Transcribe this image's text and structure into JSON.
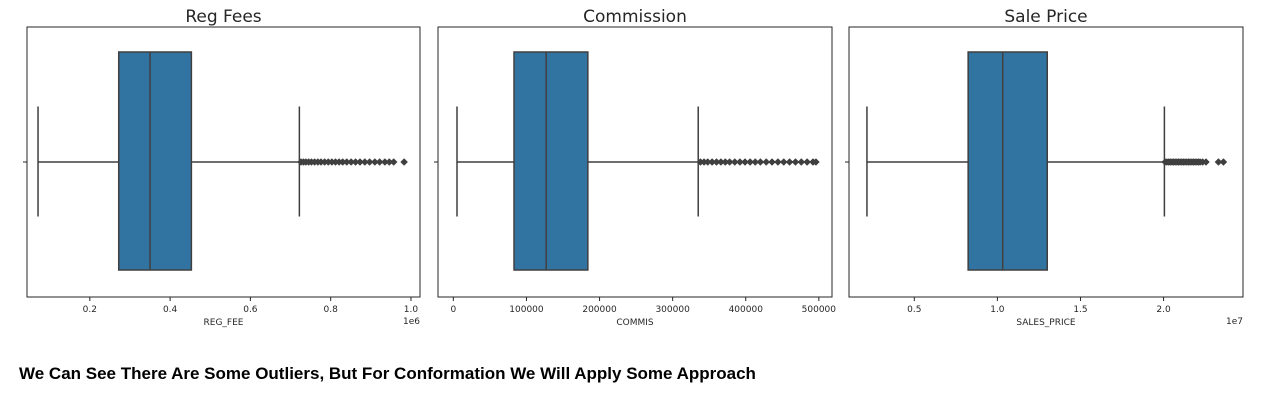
{
  "caption": "We Can See There Are Some Outliers, But For Conformation We Will Apply Some Approach",
  "colors": {
    "box_fill": "#3274a1",
    "line": "#3f3f3f",
    "frame": "#262626"
  },
  "chart_data": [
    {
      "type": "box",
      "title": "Reg Fees",
      "xlabel": "REG_FEE",
      "offset_text": "1e6",
      "xlim": [
        0.0435,
        1.0225
      ],
      "ticks": [
        0.2,
        0.4,
        0.6,
        0.8,
        1.0
      ],
      "tick_labels": [
        "0.2",
        "0.4",
        "0.6",
        "0.8",
        "1.0"
      ],
      "scale": 1000000,
      "stats": {
        "whisker_low": 0.071,
        "q1": 0.272,
        "median": 0.35,
        "q3": 0.453,
        "whisker_high": 0.722
      },
      "outliers": [
        0.726,
        0.732,
        0.738,
        0.745,
        0.752,
        0.76,
        0.768,
        0.776,
        0.785,
        0.794,
        0.803,
        0.812,
        0.821,
        0.83,
        0.84,
        0.851,
        0.862,
        0.873,
        0.885,
        0.897,
        0.91,
        0.922,
        0.935,
        0.946,
        0.957,
        0.983
      ]
    },
    {
      "type": "box",
      "title": "Commission",
      "xlabel": "COMMIS",
      "offset_text": "",
      "xlim": [
        -21000,
        518000
      ],
      "ticks": [
        0,
        100000,
        200000,
        300000,
        400000,
        500000
      ],
      "tick_labels": [
        "0",
        "100000",
        "200000",
        "300000",
        "400000",
        "500000"
      ],
      "scale": 1,
      "stats": {
        "whisker_low": 5000,
        "q1": 83000,
        "median": 127000,
        "q3": 184000,
        "whisker_high": 335000
      },
      "outliers": [
        338000,
        343000,
        348000,
        354000,
        360000,
        366000,
        372000,
        378000,
        385000,
        392000,
        399000,
        406000,
        413000,
        420000,
        428000,
        436000,
        444000,
        452000,
        460000,
        468000,
        476000,
        484000,
        492000,
        496000
      ]
    },
    {
      "type": "box",
      "title": "Sale Price",
      "xlabel": "SALES_PRICE",
      "offset_text": "1e7",
      "xlim": [
        0.107,
        2.478
      ],
      "ticks": [
        0.5,
        1.0,
        1.5,
        2.0
      ],
      "tick_labels": [
        "0.5",
        "1.0",
        "1.5",
        "2.0"
      ],
      "scale": 10000000,
      "stats": {
        "whisker_low": 0.215,
        "q1": 0.824,
        "median": 1.032,
        "q3": 1.3,
        "whisker_high": 2.005
      },
      "outliers": [
        2.01,
        2.02,
        2.03,
        2.04,
        2.05,
        2.06,
        2.07,
        2.08,
        2.09,
        2.1,
        2.11,
        2.12,
        2.13,
        2.14,
        2.15,
        2.16,
        2.17,
        2.18,
        2.19,
        2.2,
        2.21,
        2.22,
        2.235,
        2.255,
        2.33,
        2.36
      ]
    }
  ]
}
